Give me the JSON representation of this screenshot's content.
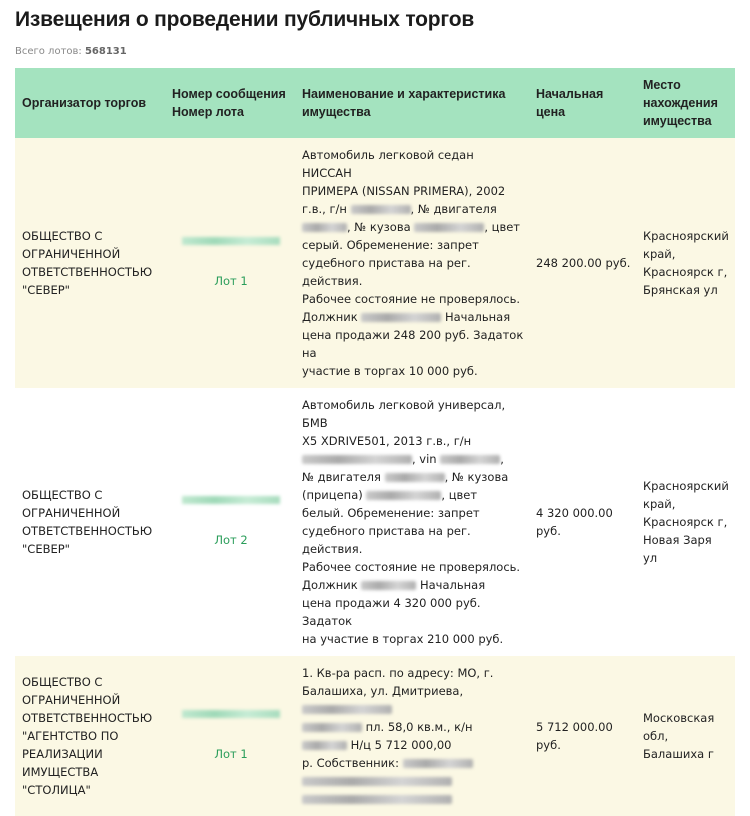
{
  "page": {
    "title": "Извещения о проведении публичных торгов",
    "total_label": "Всего лотов:",
    "total_value": "568131"
  },
  "colors": {
    "header_bg": "#a4e3bf",
    "row_alt_bg": "#fbf8e4",
    "lot_link": "#2a9d5a"
  },
  "table": {
    "headers": [
      "Организатор торгов",
      "Номер сообщения",
      "Номер лота",
      "Наименование и характеристика имущества",
      "Начальная цена",
      "Место нахождения имущества"
    ],
    "rows": [
      {
        "organizer": [
          "ОБЩЕСТВО С",
          "ОГРАНИЧЕННОЙ",
          "ОТВЕТСТВЕННОСТЬЮ",
          "\"СЕВЕР\""
        ],
        "lot": "Лот 1",
        "description": [
          [
            "Автомобиль легковой седан НИССАН"
          ],
          [
            "ПРИМЕРА (NISSAN PRIMERA), 2002"
          ],
          [
            "г.в., г/н ",
            null,
            ", № двигателя"
          ],
          [
            null,
            ", № кузова ",
            null,
            ", цвет"
          ],
          [
            "серый. Обременение: запрет"
          ],
          [
            "судебного пристава на рег. действия."
          ],
          [
            "Рабочее состояние не проверялось."
          ],
          [
            "Должник ",
            null,
            " Начальная"
          ],
          [
            "цена продажи 248 200 руб. Задаток на"
          ],
          [
            "участие в торгах 10 000 руб."
          ]
        ],
        "price": "248 200.00 руб.",
        "location": [
          "Красноярский",
          "край,",
          "Красноярск г,",
          "Брянская ул"
        ]
      },
      {
        "organizer": [
          "ОБЩЕСТВО С",
          "ОГРАНИЧЕННОЙ",
          "ОТВЕТСТВЕННОСТЬЮ",
          "\"СЕВЕР\""
        ],
        "lot": "Лот 2",
        "description": [
          [
            "Автомобиль легковой универсал, БМВ"
          ],
          [
            "X5 XDRIVE501, 2013 г.в., г/н"
          ],
          [
            null,
            ", vin ",
            null,
            ","
          ],
          [
            "№ двигателя ",
            null,
            ", № кузова"
          ],
          [
            "(прицепа) ",
            null,
            ", цвет"
          ],
          [
            "белый. Обременение: запрет"
          ],
          [
            "судебного пристава на рег. действия."
          ],
          [
            "Рабочее состояние не проверялось."
          ],
          [
            "Должник ",
            null,
            " Начальная"
          ],
          [
            "цена продажи 4 320 000 руб. Задаток"
          ],
          [
            "на участие в торгах 210 000 руб."
          ]
        ],
        "price": "4 320 000.00 руб.",
        "location": [
          "Красноярский",
          "край,",
          "Красноярск г,",
          "Новая Заря ул"
        ]
      },
      {
        "organizer": [
          "ОБЩЕСТВО С",
          "ОГРАНИЧЕННОЙ",
          "ОТВЕТСТВЕННОСТЬЮ",
          "\"АГЕНТСТВО ПО",
          "РЕАЛИЗАЦИИ",
          "ИМУЩЕСТВА",
          "\"СТОЛИЦА\""
        ],
        "lot": "Лот 1",
        "description": [
          [
            "1. Кв-ра расп. по адресу: МО, г."
          ],
          [
            "Балашиха, ул. Дмитриева, ",
            null
          ],
          [
            null,
            " пл. 58,0 кв.м., к/н"
          ],
          [
            null,
            " Н/ц 5 712 000,00"
          ],
          [
            "р. Собственник: ",
            null
          ],
          [
            null
          ],
          [
            null
          ]
        ],
        "price": "5 712 000.00 руб.",
        "location": [
          "Московская",
          "обл, Балашиха г"
        ]
      }
    ]
  }
}
